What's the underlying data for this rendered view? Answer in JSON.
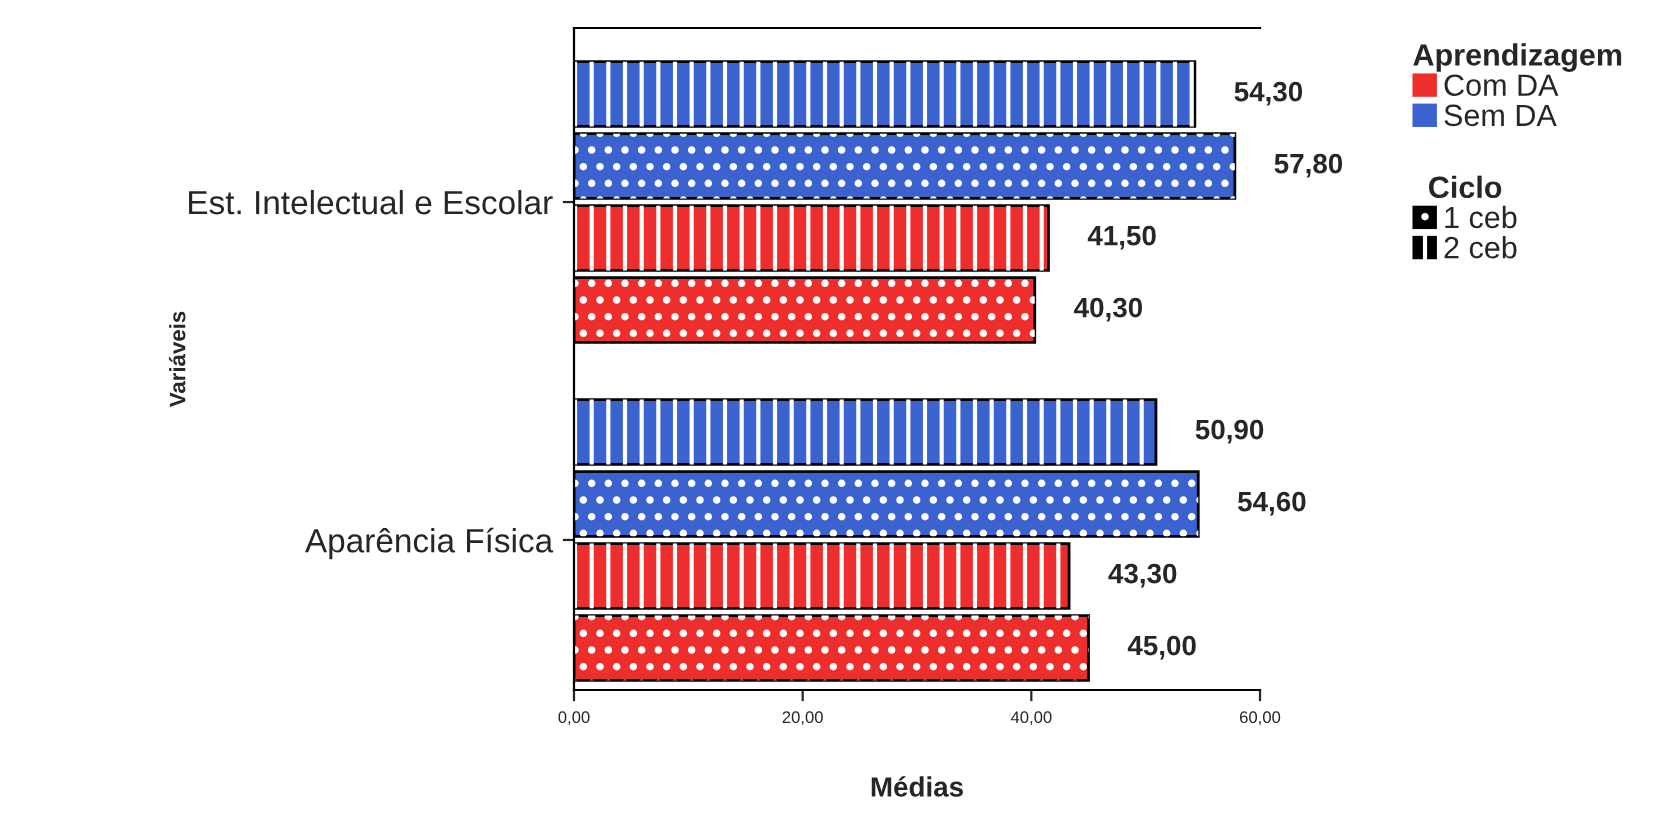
{
  "chart_data": {
    "type": "bar",
    "orientation": "horizontal",
    "xlabel": "Médias",
    "ylabel": "Variáveis",
    "legend_title": "Aprendizagem",
    "legend": "top right",
    "categories": [
      "Est. Intelectual e Escolar",
      "Aparência Física"
    ],
    "series": [
      {
        "name": "Com DA",
        "color": "#ee2d2d",
        "values": [
          40.3,
          45.0
        ],
        "value_labels": [
          "40,30",
          "45,00"
        ]
      },
      {
        "color": "#ee2d2d",
        "values": [
          41.5,
          43.3
        ],
        "value_labels": [
          "41,50",
          "43,30"
        ]
      },
      {
        "name": "Sem DA",
        "color": "#3a63d0",
        "values": [
          57.8,
          54.6
        ],
        "value_labels": [
          "57,80",
          "54,60"
        ]
      },
      {
        "color": "#3a63d0",
        "values": [
          54.3,
          50.9
        ],
        "value_labels": [
          "54,30",
          "50,90"
        ]
      }
    ],
    "xlim": [
      0,
      60
    ],
    "xticks": [
      {
        "value": 0,
        "label": "0,00"
      },
      {
        "value": 20,
        "label": "20,00"
      },
      {
        "value": 40,
        "label": "40,00"
      },
      {
        "value": 60,
        "label": "60,00"
      }
    ],
    "annotations": [
      "Ciclo",
      "1 ceb",
      "2 ceb"
    ],
    "grid": false
  }
}
